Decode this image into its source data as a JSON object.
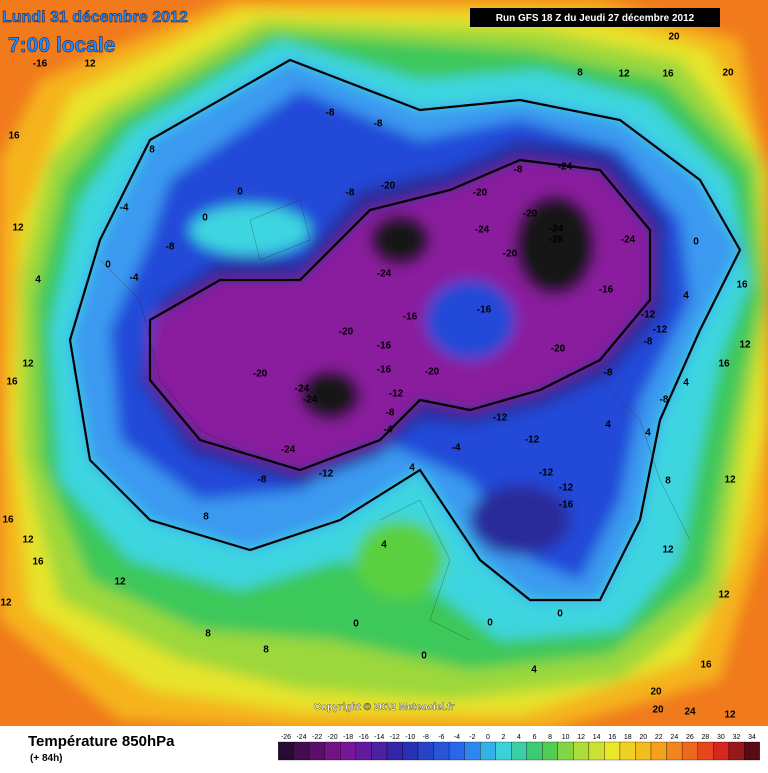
{
  "header": {
    "date": "Lundi 31 décembre 2012",
    "time": "7:00 locale",
    "run": "Run GFS 18 Z du Jeudi 27 décembre 2012"
  },
  "copyright": "Copyright © 2012 Meteociel.fr",
  "footer": {
    "title": "Température 850hPa",
    "lead": "(+ 84h)"
  },
  "legend": {
    "ticks": [
      -26,
      -24,
      -22,
      -20,
      -18,
      -16,
      -14,
      -12,
      -10,
      -8,
      -6,
      -4,
      -2,
      0,
      2,
      4,
      6,
      8,
      10,
      12,
      14,
      16,
      18,
      20,
      22,
      24,
      26,
      28,
      30,
      32,
      34
    ]
  },
  "contour_labels": [
    -8,
    -8,
    -8,
    -20,
    -20,
    -20,
    -24,
    -24,
    -28,
    -24,
    -8,
    -24,
    -20,
    -16,
    -24,
    -16,
    -16,
    -20,
    -16,
    -16,
    -20,
    -20,
    -12,
    -12,
    -8,
    -8,
    -20,
    -24,
    -24,
    -12,
    -8,
    -4,
    -12,
    -12,
    -12,
    -12,
    -16,
    -24,
    -8,
    -12,
    -4,
    4,
    0,
    -4,
    -8,
    -4,
    0,
    0,
    12,
    16,
    -16,
    12,
    8,
    20,
    20,
    12,
    16,
    8,
    0,
    4,
    16,
    12,
    16,
    4,
    12,
    12,
    16,
    20,
    20,
    24,
    12,
    4,
    0,
    0,
    8,
    8,
    12,
    16,
    12,
    16,
    12,
    4,
    16,
    12,
    8,
    4,
    0,
    0,
    8,
    12,
    4,
    4,
    -8
  ]
}
